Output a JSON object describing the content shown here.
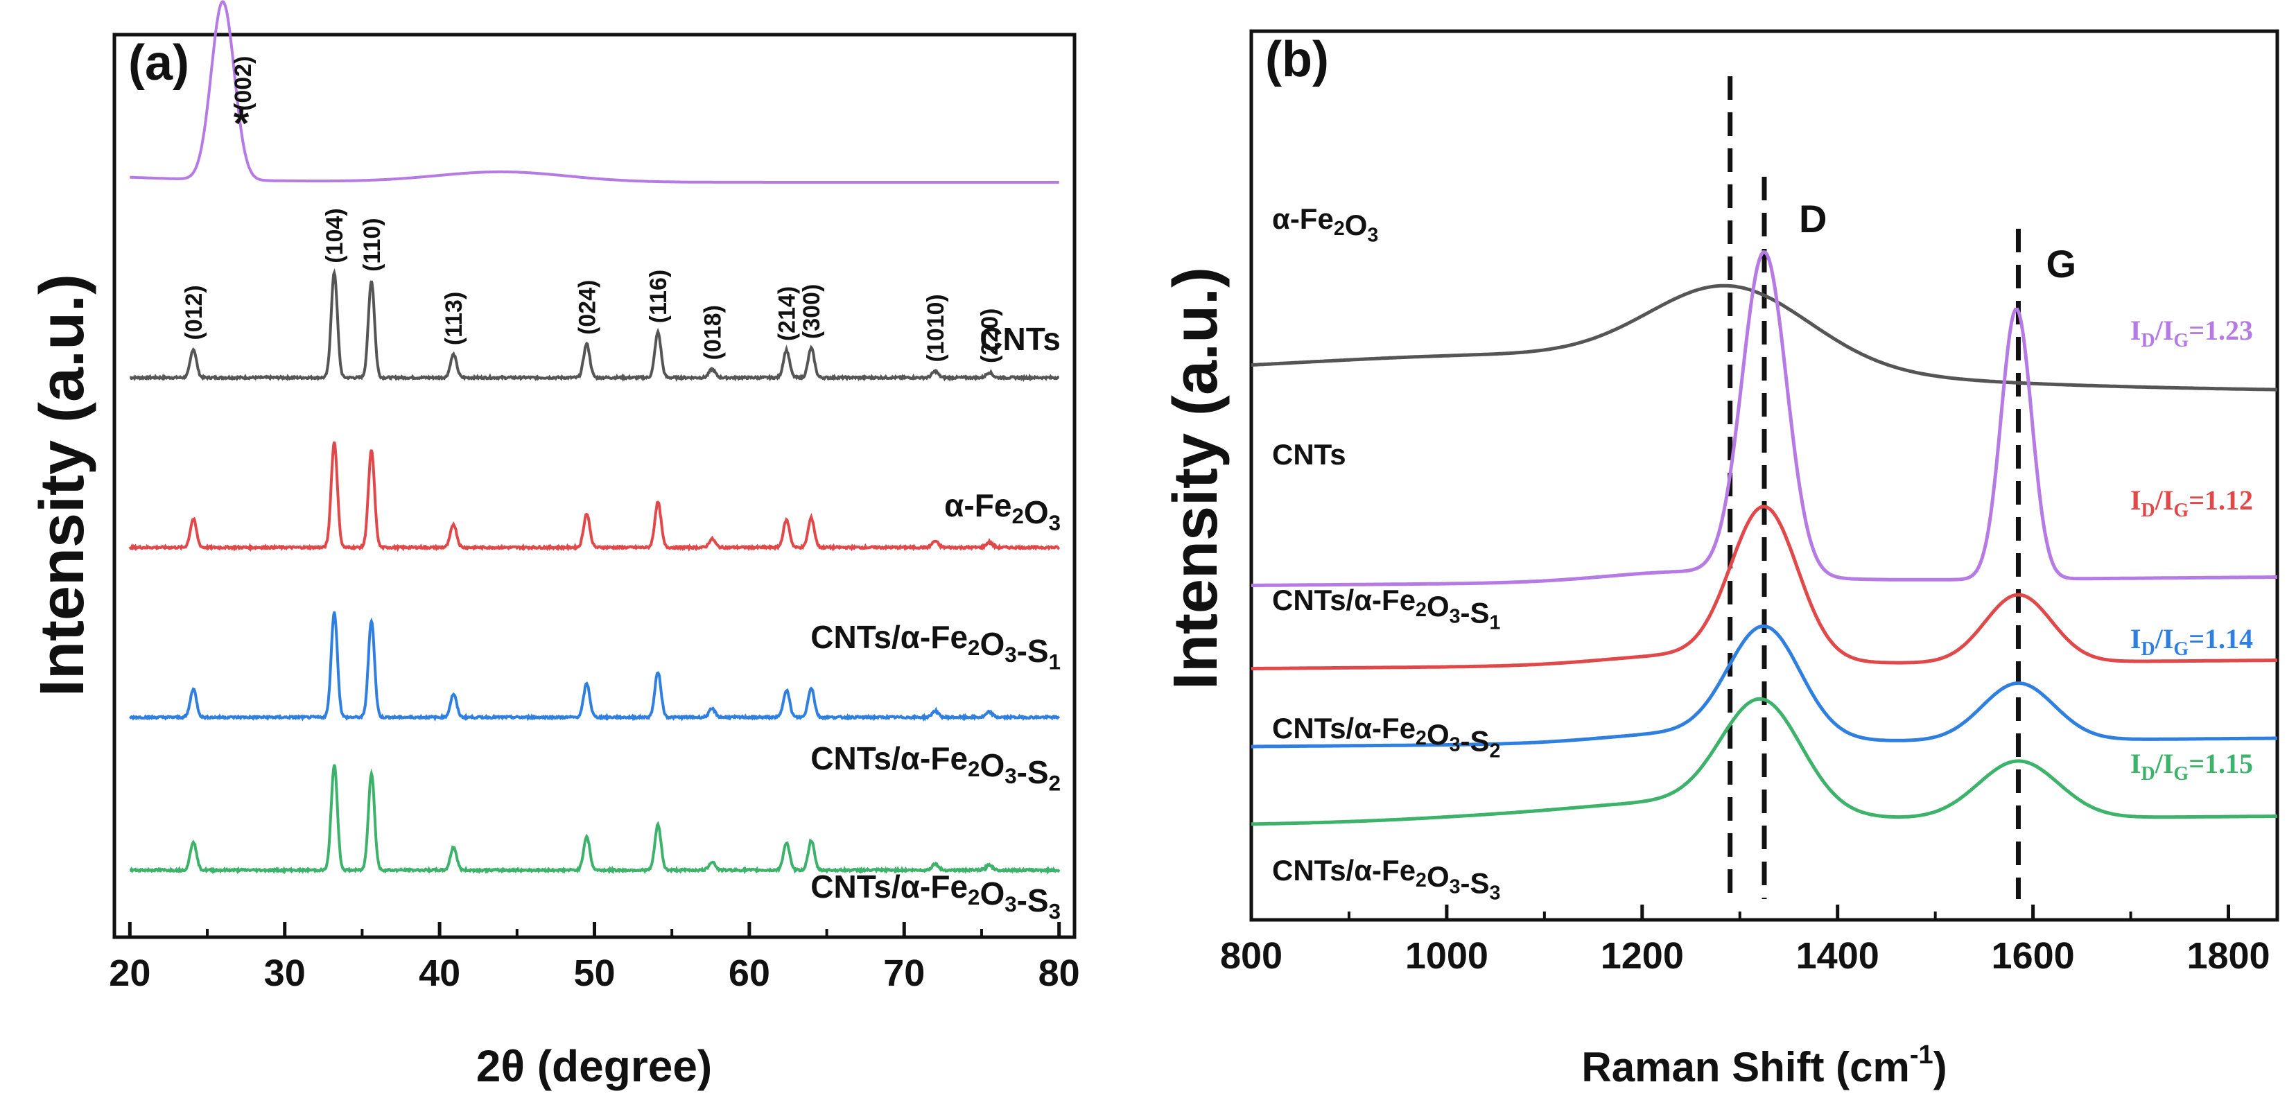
{
  "chart_data": [
    {
      "type": "line",
      "panel_label": "(a)",
      "xlabel": "2θ (degree)",
      "ylabel": "Intensity (a.u.)",
      "xlim": [
        19,
        81
      ],
      "x_ticks": [
        "20",
        "30",
        "40",
        "50",
        "60",
        "70",
        "80"
      ],
      "series": [
        {
          "name": "CNTs",
          "color": "#b57ae3",
          "peaks": [
            26.0
          ],
          "offset": 4.2
        },
        {
          "name": "α-Fe2O3",
          "color": "#555555",
          "peaks": [
            24.1,
            33.2,
            35.6,
            40.9,
            49.5,
            54.1,
            57.6,
            62.4,
            64.0,
            72.0,
            75.5
          ],
          "offset": 3.05
        },
        {
          "name": "CNTs/α-Fe2O3-S1",
          "color": "#e0484a",
          "peaks": [
            24.1,
            33.2,
            35.6,
            40.9,
            49.5,
            54.1,
            57.6,
            62.4,
            64.0,
            72.0,
            75.5
          ],
          "offset": 2.05
        },
        {
          "name": "CNTs/α-Fe2O3-S2",
          "color": "#2f7fe0",
          "peaks": [
            24.1,
            33.2,
            35.6,
            40.9,
            49.5,
            54.1,
            57.6,
            62.4,
            64.0,
            72.0,
            75.5
          ],
          "offset": 1.05
        },
        {
          "name": "CNTs/α-Fe2O3-S3",
          "color": "#3cb26a",
          "peaks": [
            24.1,
            33.2,
            35.6,
            40.9,
            49.5,
            54.1,
            57.6,
            62.4,
            64.0,
            72.0,
            75.5
          ],
          "offset": 0.15
        }
      ],
      "legend_labels": [
        {
          "main": "CNTs",
          "sub": ""
        },
        {
          "main": "α-Fe",
          "sub2": "2",
          "mid": "O",
          "sub3": "3",
          "tail": ""
        },
        {
          "main": "CNTs/α-Fe",
          "sub2": "2",
          "mid": "O",
          "sub3": "3",
          "tail": "-S",
          "sub4": "1"
        },
        {
          "main": "CNTs/α-Fe",
          "sub2": "2",
          "mid": "O",
          "sub3": "3",
          "tail": "-S",
          "sub4": "2"
        },
        {
          "main": "CNTs/α-Fe",
          "sub2": "2",
          "mid": "O",
          "sub3": "3",
          "tail": "-S",
          "sub4": "3"
        }
      ],
      "annotations": {
        "cnt_peak": "(002)",
        "cnt_marker": "*",
        "hkl": [
          {
            "x": 24.1,
            "text": "(012)"
          },
          {
            "x": 33.2,
            "text": "(104)"
          },
          {
            "x": 35.6,
            "text": "(110)"
          },
          {
            "x": 40.9,
            "text": "(113)"
          },
          {
            "x": 49.5,
            "text": "(024)"
          },
          {
            "x": 54.1,
            "text": "(116)"
          },
          {
            "x": 57.6,
            "text": "(018)"
          },
          {
            "x": 62.4,
            "text": "(214)"
          },
          {
            "x": 64.0,
            "text": "(300)"
          },
          {
            "x": 72.0,
            "text": "(1010)"
          },
          {
            "x": 75.5,
            "text": "(220)"
          }
        ]
      }
    },
    {
      "type": "line",
      "panel_label": "(b)",
      "xlabel": "Raman Shift (cm",
      "xlabel_sup": "-1",
      "xlabel_tail": ")",
      "ylabel": "Intensity (a.u.)",
      "xlim": [
        800,
        1850
      ],
      "x_ticks": [
        "800",
        "1000",
        "1200",
        "1400",
        "1600",
        "1800"
      ],
      "dashed_lines_x": [
        1290,
        1325,
        1585
      ],
      "band_labels": [
        {
          "x": 1325,
          "text": "D"
        },
        {
          "x": 1585,
          "text": "G"
        }
      ],
      "series": [
        {
          "name": "α-Fe2O3",
          "color": "#555555",
          "offset": 4.55
        },
        {
          "name": "CNTs",
          "color": "#b57ae3",
          "offset": 2.55,
          "ratio": "1.23"
        },
        {
          "name": "CNTs/α-Fe2O3-S1",
          "color": "#e0484a",
          "offset": 1.75,
          "ratio": "1.12"
        },
        {
          "name": "CNTs/α-Fe2O3-S2",
          "color": "#2f7fe0",
          "offset": 1.0,
          "ratio": "1.14"
        },
        {
          "name": "CNTs/α-Fe2O3-S3",
          "color": "#3cb26a",
          "offset": 0.25,
          "ratio": "1.15"
        }
      ],
      "ratio_prefix": "I",
      "ratio_sub_d": "D",
      "ratio_sub_g": "G",
      "ratio_eq": "=",
      "legend_labels": [
        {
          "main": "α-Fe",
          "sub2": "2",
          "mid": "O",
          "sub3": "3",
          "tail": ""
        },
        {
          "main": "CNTs",
          "sub": ""
        },
        {
          "main": "CNTs/α-Fe",
          "sub2": "2",
          "mid": "O",
          "sub3": "3",
          "tail": "-S",
          "sub4": "1"
        },
        {
          "main": "CNTs/α-Fe",
          "sub2": "2",
          "mid": "O",
          "sub3": "3",
          "tail": "-S",
          "sub4": "2"
        },
        {
          "main": "CNTs/α-Fe",
          "sub2": "2",
          "mid": "O",
          "sub3": "3",
          "tail": "-S",
          "sub4": "3"
        }
      ]
    }
  ]
}
